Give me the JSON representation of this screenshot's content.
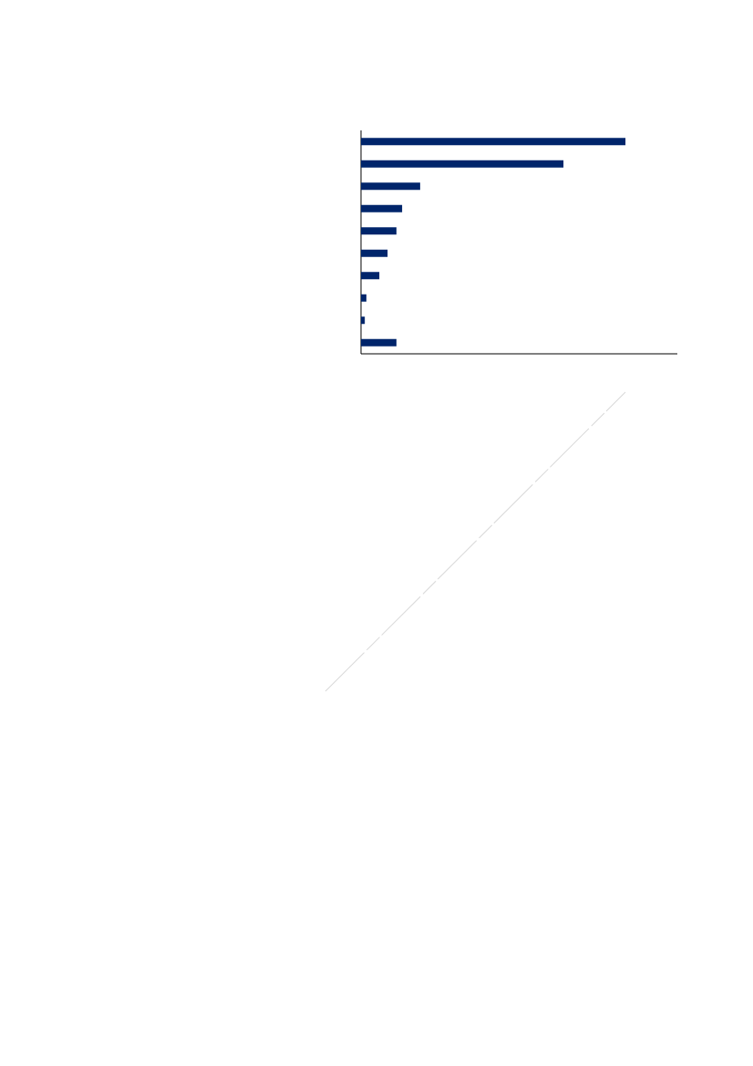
{
  "chart_data": {
    "type": "bar",
    "orientation": "horizontal",
    "categories": [
      null,
      null,
      null,
      null,
      null,
      null,
      null,
      null,
      null,
      null
    ],
    "values": [
      83.6,
      64,
      18.7,
      13,
      11.2,
      8.4,
      5.8,
      1.7,
      1.2,
      11.2
    ],
    "color": "#00256b",
    "xlim": [
      0,
      100
    ]
  }
}
